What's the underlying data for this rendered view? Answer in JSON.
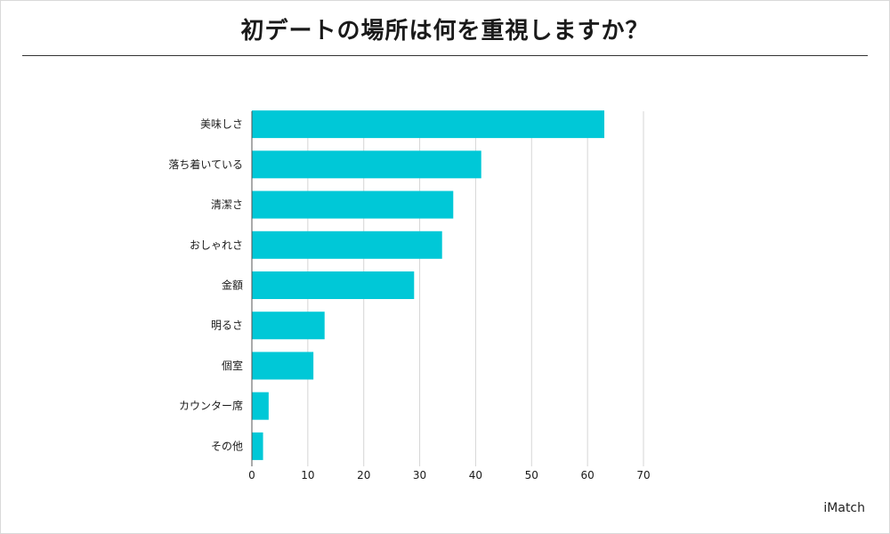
{
  "title": "初デートの場所は何を重視しますか？",
  "credit": "iMatch",
  "colors": {
    "bar": "#00c8d7",
    "grid": "#d6d6d6",
    "axis": "#555555",
    "text": "#1a1a1a"
  },
  "chart_data": {
    "type": "bar",
    "orientation": "horizontal",
    "categories": [
      "美味しさ",
      "落ち着いている",
      "清潔さ",
      "おしゃれさ",
      "金額",
      "明るさ",
      "個室",
      "カウンター席",
      "その他"
    ],
    "values": [
      63,
      41,
      36,
      34,
      29,
      13,
      11,
      3,
      2
    ],
    "xlim": [
      0,
      70
    ],
    "xticks": [
      0,
      10,
      20,
      30,
      40,
      50,
      60,
      70
    ],
    "grid": true,
    "legend": "none"
  }
}
